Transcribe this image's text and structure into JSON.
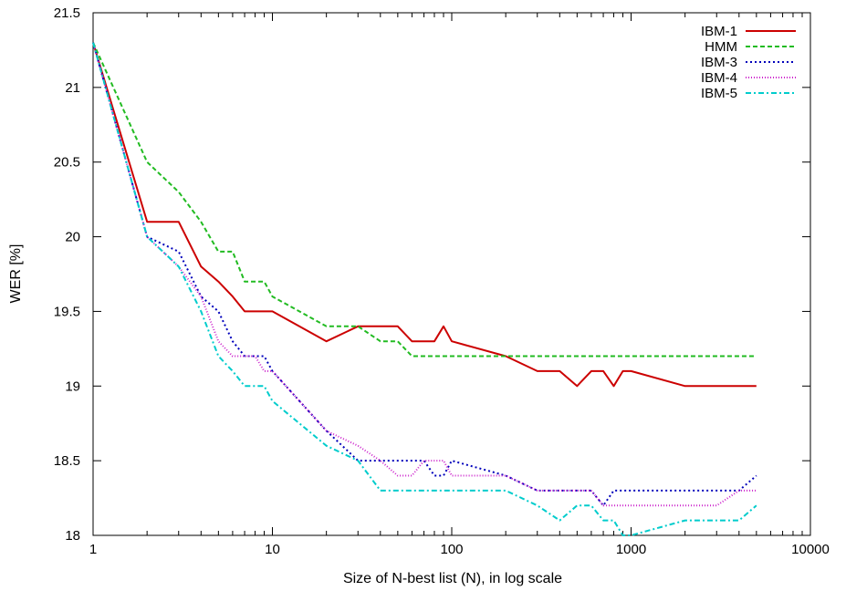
{
  "chart_data": {
    "type": "line",
    "title": "",
    "xlabel": "Size of N-best list (N), in log scale",
    "ylabel": "WER [%]",
    "x_scale": "log",
    "xlim": [
      1,
      10000
    ],
    "ylim": [
      18,
      21.5
    ],
    "x_ticks": [
      1,
      10,
      100,
      1000,
      10000
    ],
    "x_tick_labels": [
      "1",
      "10",
      "100",
      "1000",
      "10000"
    ],
    "y_ticks": [
      18,
      18.5,
      19,
      19.5,
      20,
      20.5,
      21,
      21.5
    ],
    "y_tick_labels": [
      "18",
      "18.5",
      "19",
      "19.5",
      "20",
      "20.5",
      "21",
      "21.5"
    ],
    "grid": false,
    "legend_position": "top-right",
    "series": [
      {
        "name": "IBM-1",
        "color": "#cc0000",
        "dash": "solid",
        "x": [
          1,
          2,
          3,
          4,
          5,
          6,
          7,
          8,
          9,
          10,
          20,
          30,
          40,
          50,
          60,
          70,
          80,
          90,
          100,
          200,
          300,
          400,
          500,
          600,
          700,
          800,
          900,
          1000,
          2000,
          3000,
          4000,
          5000
        ],
        "y": [
          21.3,
          20.1,
          20.1,
          19.8,
          19.7,
          19.6,
          19.5,
          19.5,
          19.5,
          19.5,
          19.3,
          19.4,
          19.4,
          19.4,
          19.3,
          19.3,
          19.3,
          19.4,
          19.3,
          19.2,
          19.1,
          19.1,
          19.0,
          19.1,
          19.1,
          19.0,
          19.1,
          19.1,
          19.0,
          19.0,
          19.0,
          19.0
        ]
      },
      {
        "name": "HMM",
        "color": "#22bb22",
        "dash": "dashed",
        "x": [
          1,
          2,
          3,
          4,
          5,
          6,
          7,
          8,
          9,
          10,
          20,
          30,
          40,
          50,
          60,
          70,
          80,
          90,
          100,
          200,
          300,
          400,
          500,
          600,
          700,
          800,
          900,
          1000,
          2000,
          3000,
          4000,
          5000
        ],
        "y": [
          21.3,
          20.5,
          20.3,
          20.1,
          19.9,
          19.9,
          19.7,
          19.7,
          19.7,
          19.6,
          19.4,
          19.4,
          19.3,
          19.3,
          19.2,
          19.2,
          19.2,
          19.2,
          19.2,
          19.2,
          19.2,
          19.2,
          19.2,
          19.2,
          19.2,
          19.2,
          19.2,
          19.2,
          19.2,
          19.2,
          19.2,
          19.2
        ]
      },
      {
        "name": "IBM-3",
        "color": "#0000bb",
        "dash": "dotted",
        "x": [
          1,
          2,
          3,
          4,
          5,
          6,
          7,
          8,
          9,
          10,
          20,
          30,
          40,
          50,
          60,
          70,
          80,
          90,
          100,
          200,
          300,
          400,
          500,
          600,
          700,
          800,
          900,
          1000,
          2000,
          3000,
          4000,
          5000
        ],
        "y": [
          21.3,
          20.0,
          19.9,
          19.6,
          19.5,
          19.3,
          19.2,
          19.2,
          19.2,
          19.1,
          18.7,
          18.5,
          18.5,
          18.5,
          18.5,
          18.5,
          18.4,
          18.4,
          18.5,
          18.4,
          18.3,
          18.3,
          18.3,
          18.3,
          18.2,
          18.3,
          18.3,
          18.3,
          18.3,
          18.3,
          18.3,
          18.4
        ]
      },
      {
        "name": "IBM-4",
        "color": "#cc22cc",
        "dash": "dotted-fine",
        "x": [
          1,
          2,
          3,
          4,
          5,
          6,
          7,
          8,
          9,
          10,
          20,
          30,
          40,
          50,
          60,
          70,
          80,
          90,
          100,
          200,
          300,
          400,
          500,
          600,
          700,
          800,
          900,
          1000,
          2000,
          3000,
          4000,
          5000
        ],
        "y": [
          21.3,
          20.0,
          19.8,
          19.6,
          19.3,
          19.2,
          19.2,
          19.2,
          19.1,
          19.1,
          18.7,
          18.6,
          18.5,
          18.4,
          18.4,
          18.5,
          18.5,
          18.5,
          18.4,
          18.4,
          18.3,
          18.3,
          18.3,
          18.3,
          18.2,
          18.2,
          18.2,
          18.2,
          18.2,
          18.2,
          18.3,
          18.3
        ]
      },
      {
        "name": "IBM-5",
        "color": "#00cccc",
        "dash": "dash-dot",
        "x": [
          1,
          2,
          3,
          4,
          5,
          6,
          7,
          8,
          9,
          10,
          20,
          30,
          40,
          50,
          60,
          70,
          80,
          90,
          100,
          200,
          300,
          400,
          500,
          600,
          700,
          800,
          900,
          1000,
          2000,
          3000,
          4000,
          5000
        ],
        "y": [
          21.3,
          20.0,
          19.8,
          19.5,
          19.2,
          19.1,
          19.0,
          19.0,
          19.0,
          18.9,
          18.6,
          18.5,
          18.3,
          18.3,
          18.3,
          18.3,
          18.3,
          18.3,
          18.3,
          18.3,
          18.2,
          18.1,
          18.2,
          18.2,
          18.1,
          18.1,
          18.0,
          18.0,
          18.1,
          18.1,
          18.1,
          18.2
        ]
      }
    ]
  }
}
